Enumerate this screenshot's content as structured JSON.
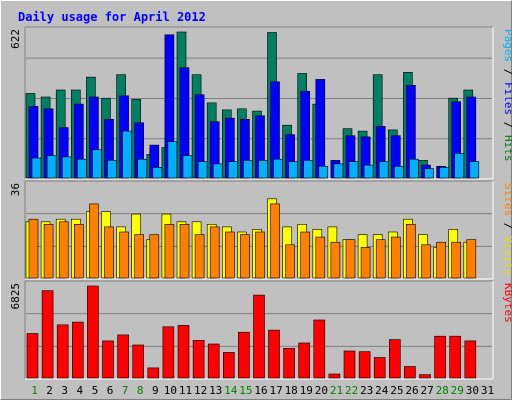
{
  "chart_data": {
    "type": "bar",
    "title": "Daily usage for April 2012",
    "categories": [
      "1",
      "2",
      "3",
      "4",
      "5",
      "6",
      "7",
      "8",
      "9",
      "10",
      "11",
      "12",
      "13",
      "14",
      "15",
      "16",
      "17",
      "18",
      "19",
      "20",
      "21",
      "22",
      "23",
      "24",
      "25",
      "26",
      "27",
      "28",
      "29",
      "30",
      "31"
    ],
    "weekend_days": [
      "1",
      "7",
      "8",
      "14",
      "15",
      "21",
      "22",
      "28",
      "29"
    ],
    "panels": [
      {
        "name": "hits-files-pages",
        "max_label": "622",
        "ymax": 622,
        "label_parts": [
          {
            "text": "Pages",
            "color": "#00b0ff"
          },
          {
            "text": " / ",
            "color": "#000000"
          },
          {
            "text": "Files",
            "color": "#0000ff"
          },
          {
            "text": " / ",
            "color": "#000000"
          },
          {
            "text": "Hits",
            "color": "#008000"
          }
        ],
        "series": [
          {
            "name": "Hits",
            "color": "#008060",
            "values": [
              360,
              345,
              375,
              375,
              430,
              340,
              440,
              335,
              100,
              130,
              622,
              440,
              320,
              290,
              295,
              285,
              620,
              225,
              445,
              315,
              0,
              210,
              200,
              440,
              205,
              450,
              75,
              0,
              340,
              375,
              0
            ]
          },
          {
            "name": "Files",
            "color": "#0000ff",
            "values": [
              305,
              295,
              215,
              315,
              345,
              250,
              350,
              235,
              140,
              610,
              470,
              355,
              240,
              255,
              250,
              265,
              410,
              185,
              370,
              420,
              75,
              180,
              175,
              220,
              180,
              395,
              55,
              50,
              325,
              345,
              0
            ]
          },
          {
            "name": "Pages",
            "color": "#00b0ff",
            "values": [
              85,
              95,
              90,
              80,
              120,
              75,
              200,
              80,
              45,
              155,
              95,
              70,
              60,
              70,
              75,
              75,
              80,
              70,
              75,
              50,
              60,
              70,
              55,
              70,
              50,
              80,
              40,
              45,
              105,
              70,
              0
            ]
          }
        ]
      },
      {
        "name": "visits-sites",
        "max_label": "36",
        "ymax": 36,
        "label_parts": [
          {
            "text": "Sites",
            "color": "#ff8000"
          },
          {
            "text": " / ",
            "color": "#000000"
          },
          {
            "text": "Visits",
            "color": "#e0e000"
          }
        ],
        "series": [
          {
            "name": "Visits",
            "color": "#ffff00",
            "values": [
              22,
              22,
              23,
              23,
              26,
              26,
              20,
              25,
              15,
              25,
              22,
              22,
              21,
              20,
              18,
              19,
              31,
              20,
              21,
              19,
              20,
              15,
              17,
              17,
              18,
              23,
              17,
              12,
              19,
              14,
              0
            ]
          },
          {
            "name": "Sites",
            "color": "#ff8000",
            "values": [
              23,
              21,
              22,
              21,
              29,
              20,
              18,
              17,
              17,
              21,
              21,
              17,
              20,
              18,
              17,
              18,
              29,
              13,
              18,
              16,
              14,
              15,
              12,
              15,
              16,
              21,
              13,
              14,
              14,
              15,
              0
            ]
          }
        ]
      },
      {
        "name": "kbytes",
        "max_label": "6825",
        "ymax": 6825,
        "label_parts": [
          {
            "text": "KBytes",
            "color": "#ff0000"
          }
        ],
        "series": [
          {
            "name": "KBytes",
            "color": "#ff0000",
            "values": [
              3300,
              6480,
              3950,
              4150,
              6825,
              2750,
              3200,
              2450,
              750,
              3800,
              3900,
              2800,
              2520,
              1900,
              3400,
              6150,
              3550,
              2200,
              2600,
              4300,
              300,
              2000,
              1960,
              1520,
              2850,
              850,
              250,
              3100,
              3100,
              2750,
              0
            ]
          }
        ]
      }
    ]
  }
}
